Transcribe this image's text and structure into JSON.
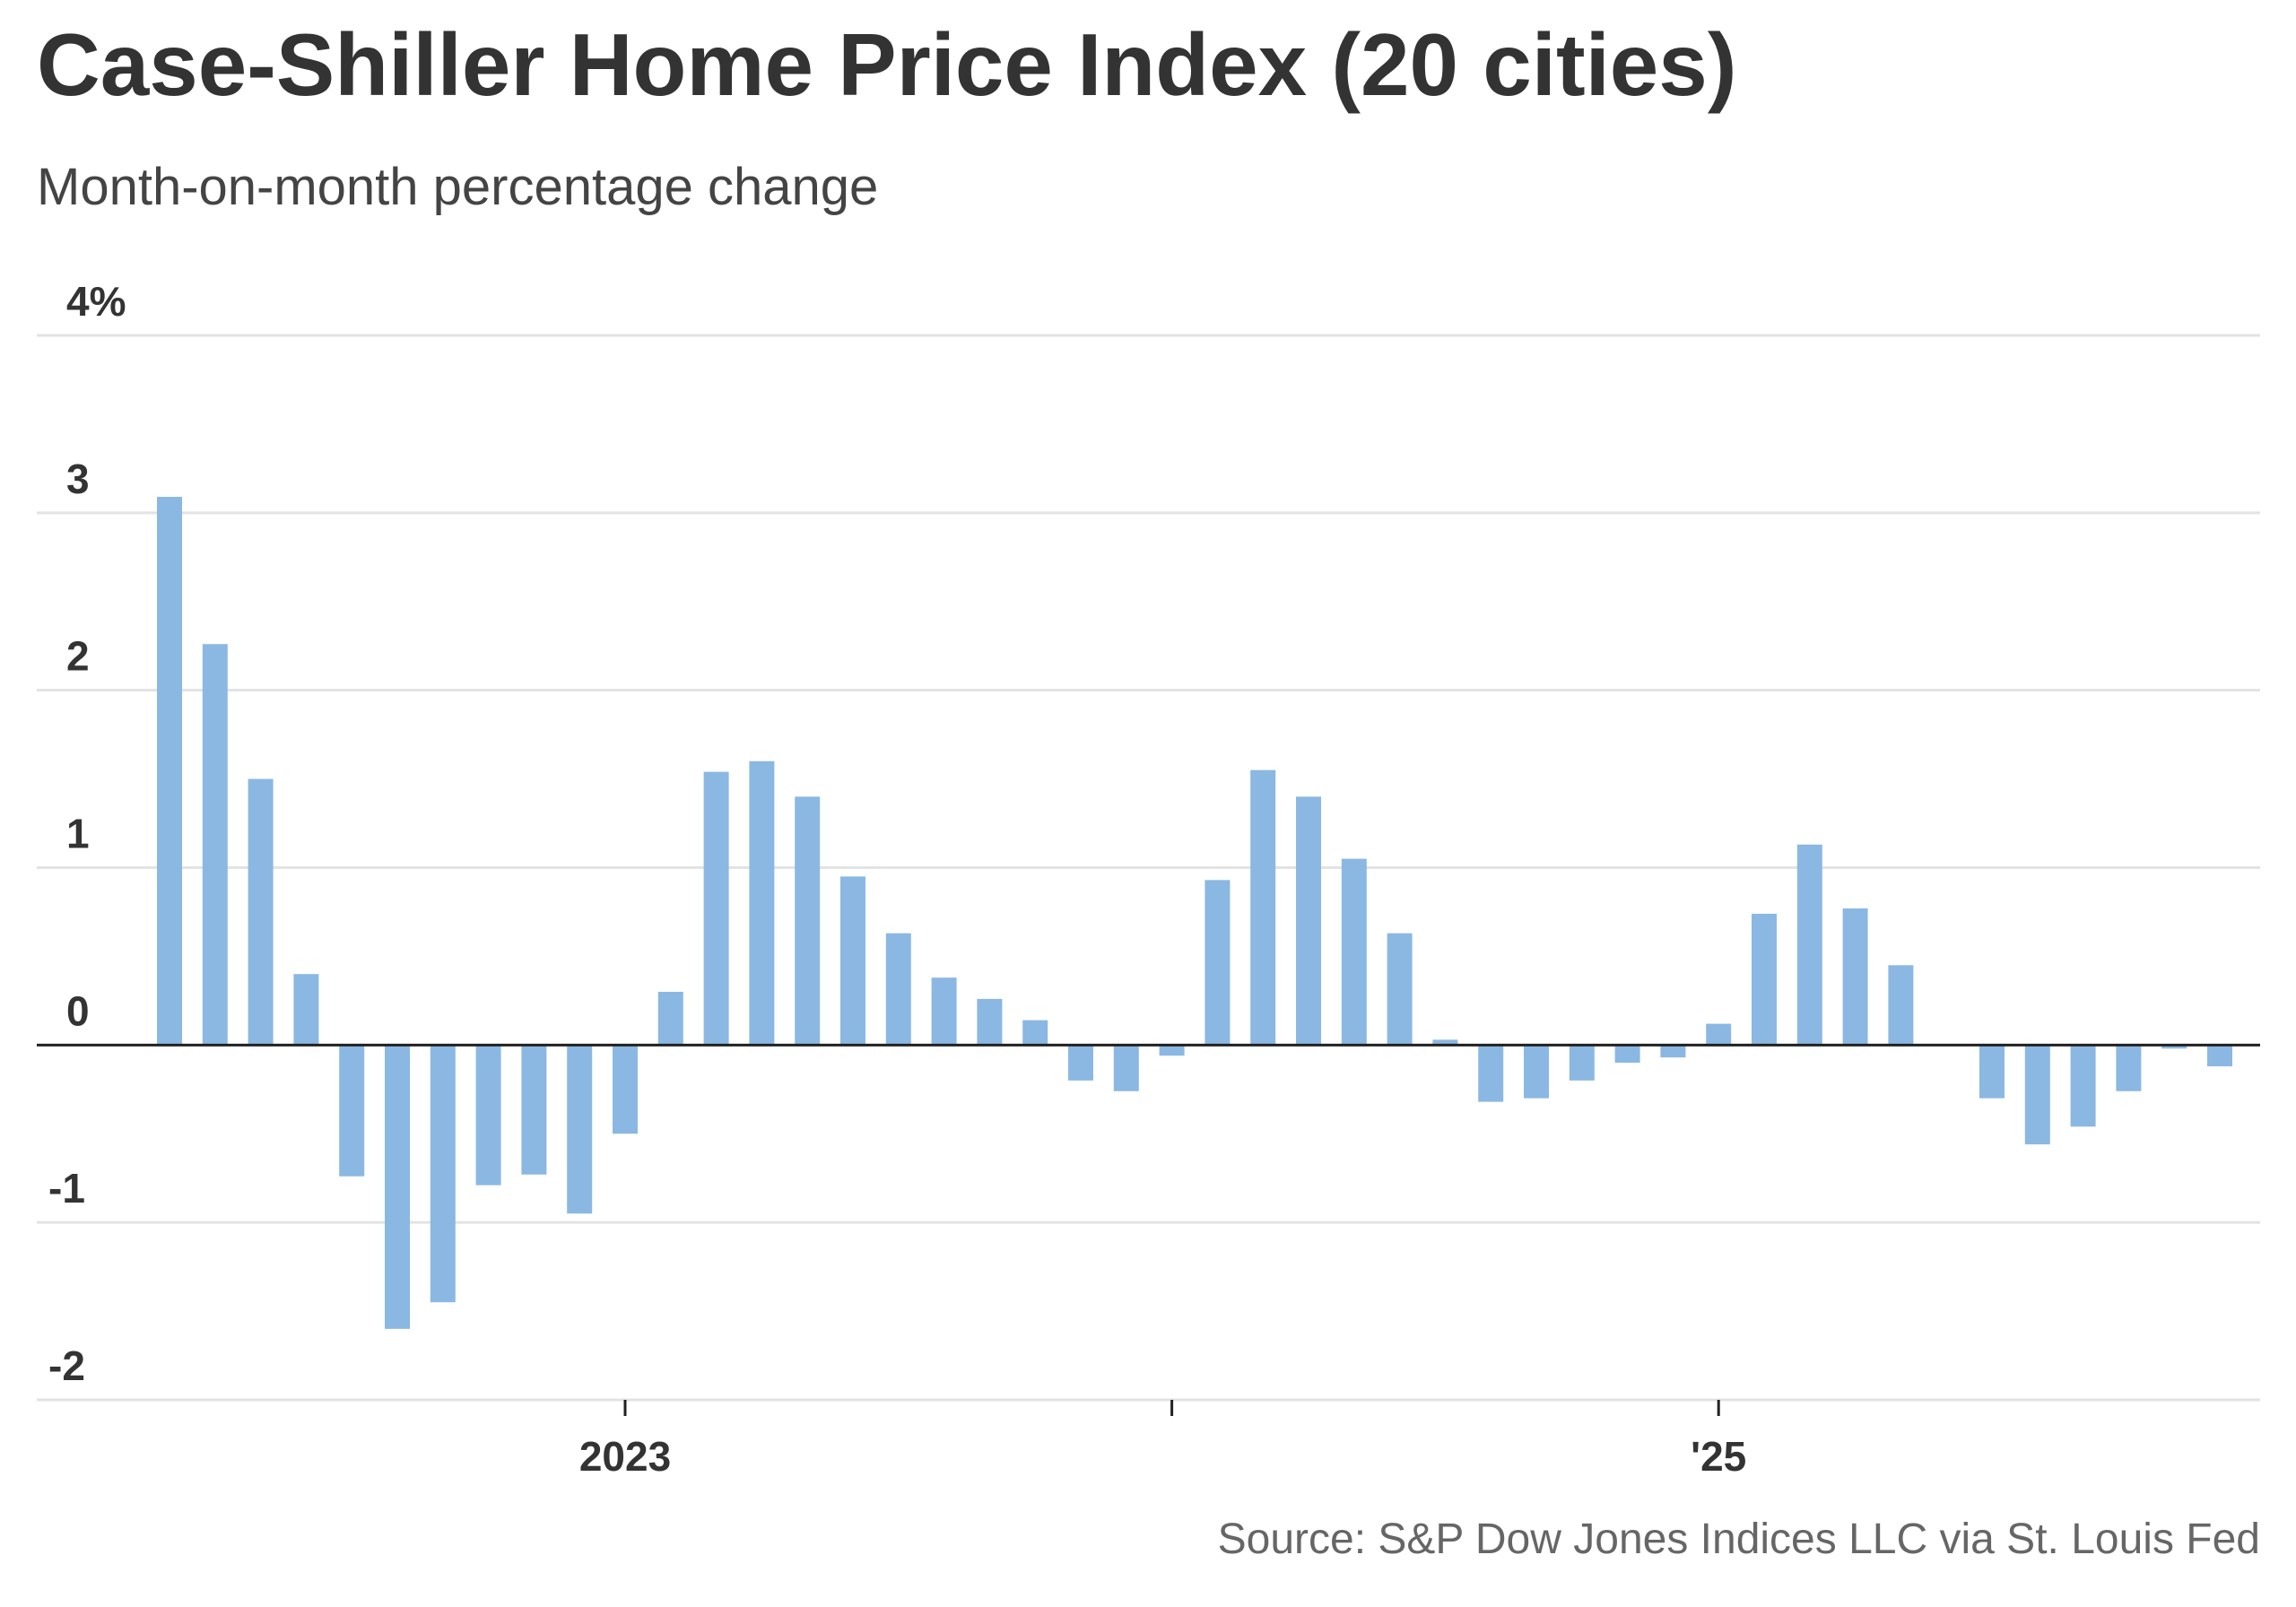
{
  "chart_data": {
    "type": "bar",
    "title": "Case-Shiller Home Price Index (20 cities)",
    "subtitle": "Month-on-month percentage change",
    "source": "Source: S&P Dow Jones Indices LLC via St. Louis Fed",
    "color": "#8bb8e2",
    "categories": [
      null,
      null,
      null,
      null,
      null,
      null,
      null,
      null,
      null,
      null,
      "2023",
      null,
      null,
      null,
      null,
      null,
      null,
      null,
      null,
      null,
      null,
      null,
      null,
      null,
      null,
      null,
      null,
      null,
      null,
      null,
      null,
      null,
      null,
      null,
      "'25",
      null,
      null,
      null,
      null,
      null,
      null,
      null,
      null,
      null,
      null,
      null
    ],
    "values": [
      3.09,
      2.26,
      1.5,
      0.4,
      -0.74,
      -1.6,
      -1.45,
      -0.79,
      -0.73,
      -0.95,
      -0.5,
      0.3,
      1.54,
      1.6,
      1.4,
      0.95,
      0.63,
      0.38,
      0.26,
      0.14,
      -0.2,
      -0.26,
      -0.06,
      0.93,
      1.55,
      1.4,
      1.05,
      0.63,
      0.03,
      -0.32,
      -0.3,
      -0.2,
      -0.1,
      -0.07,
      0.12,
      0.74,
      1.13,
      0.77,
      0.45,
      0,
      -0.3,
      -0.56,
      -0.46,
      -0.26,
      -0.02,
      -0.12
    ],
    "ylim": [
      -2,
      4
    ],
    "yticks": [
      -2,
      -1,
      0,
      1,
      2,
      3,
      {
        "value": 4,
        "label": "4%"
      }
    ],
    "grid": true
  }
}
